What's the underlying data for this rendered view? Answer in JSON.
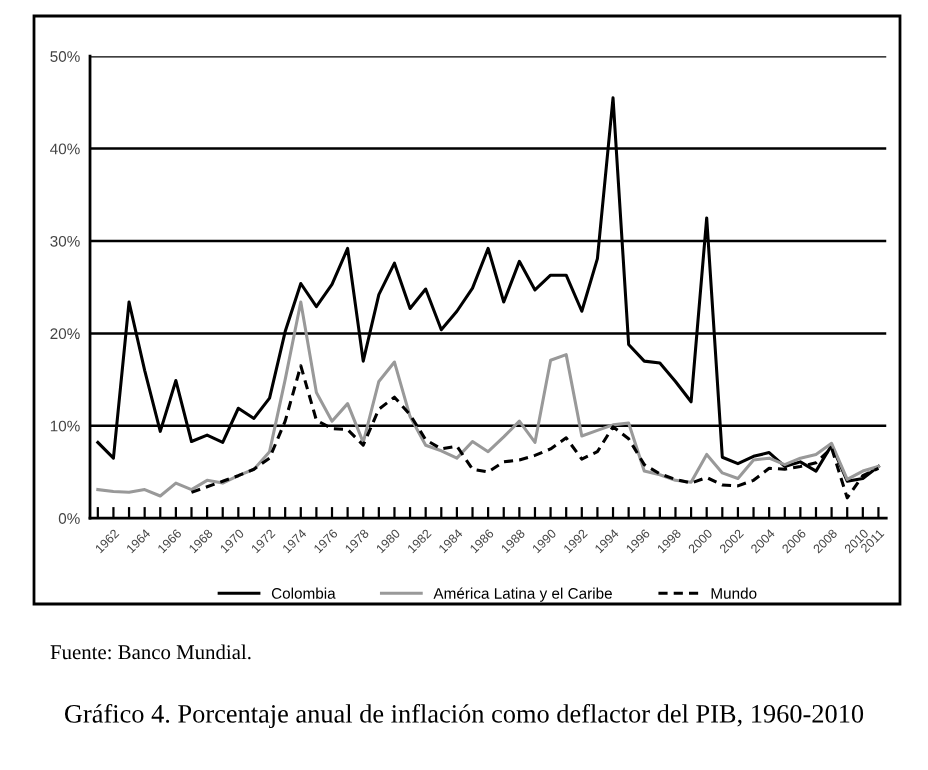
{
  "chart_data": {
    "type": "line",
    "title": "Gráfico 4. Porcentaje anual de inflación como deflactor del PIB, 1960-2010",
    "annotations": [
      "Fuente: Banco Mundial."
    ],
    "categories": [
      null,
      "1962",
      null,
      "1964",
      null,
      "1966",
      null,
      "1968",
      null,
      "1970",
      null,
      "1972",
      null,
      "1974",
      null,
      "1976",
      null,
      "1978",
      null,
      "1980",
      null,
      "1982",
      null,
      "1984",
      null,
      "1986",
      null,
      "1988",
      null,
      "1990",
      null,
      "1992",
      null,
      "1994",
      null,
      "1996",
      null,
      "1998",
      null,
      "2000",
      null,
      "2002",
      null,
      "2004",
      null,
      "2006",
      null,
      "2008",
      null,
      "2010",
      "2011"
    ],
    "series": [
      {
        "name": "Colombia",
        "color": "#000000",
        "line_style": "solid",
        "values": [
          8.2,
          6.5,
          23.4,
          16,
          9.4,
          14.9,
          8.3,
          9.0,
          8.2,
          11.9,
          10.8,
          13.0,
          20.2,
          25.4,
          22.9,
          25.3,
          29.2,
          17.0,
          24.2,
          27.6,
          22.7,
          24.8,
          20.4,
          22.4,
          24.9,
          29.2,
          23.4,
          27.8,
          24.7,
          26.3,
          26.3,
          22.4,
          28.1,
          45.5,
          18.8,
          17.0,
          16.8,
          14.8,
          12.6,
          32.5,
          6.6,
          5.9,
          6.7,
          7.1,
          5.6,
          6.1,
          5.1,
          7.9,
          4.0,
          4.3,
          5.6
        ]
      },
      {
        "name": "América Latina y el Caribe",
        "color": "#999999",
        "line_style": "solid",
        "values": [
          3.1,
          2.9,
          2.8,
          3.1,
          2.4,
          3.8,
          3.1,
          4.1,
          3.8,
          4.6,
          5.3,
          7.2,
          15,
          23.4,
          13.6,
          10.5,
          12.4,
          8.2,
          14.8,
          16.9,
          11,
          7.9,
          7.3,
          6.5,
          8.3,
          7.2,
          8.8,
          10.5,
          8.2,
          17.1,
          17.7,
          8.9,
          9.5,
          10.1,
          10.3,
          5.1,
          4.7,
          4.1,
          3.9,
          6.9,
          4.9,
          4.3,
          6.3,
          6.5,
          5.8,
          6.5,
          6.9,
          8.1,
          4.2,
          5.1,
          5.6
        ]
      },
      {
        "name": "Mundo",
        "color": "#000000",
        "line_style": "dashed",
        "values": [
          null,
          null,
          null,
          null,
          null,
          null,
          2.8,
          3.4,
          4.0,
          4.6,
          5.3,
          6.5,
          10.5,
          16.5,
          10.6,
          9.7,
          9.6,
          7.9,
          11.8,
          13.1,
          11.2,
          8.5,
          7.5,
          7.8,
          5.3,
          5.0,
          6.1,
          6.3,
          6.8,
          7.5,
          8.7,
          6.4,
          7.2,
          9.9,
          8.6,
          5.8,
          4.8,
          4.2,
          3.8,
          4.4,
          3.6,
          3.5,
          4.1,
          5.4,
          5.3,
          5.6,
          6.0,
          7.6,
          2.2,
          4.6,
          5.4
        ]
      }
    ],
    "ylim": [
      0,
      50
    ],
    "yticks": [
      {
        "value": 0,
        "label": "0%"
      },
      {
        "value": 10,
        "label": "10%"
      },
      {
        "value": 20,
        "label": "20%"
      },
      {
        "value": 30,
        "label": "30%"
      },
      {
        "value": 40,
        "label": "40%"
      },
      {
        "value": 50,
        "label": "50%"
      }
    ],
    "grid": "y",
    "legend": "bottom"
  }
}
